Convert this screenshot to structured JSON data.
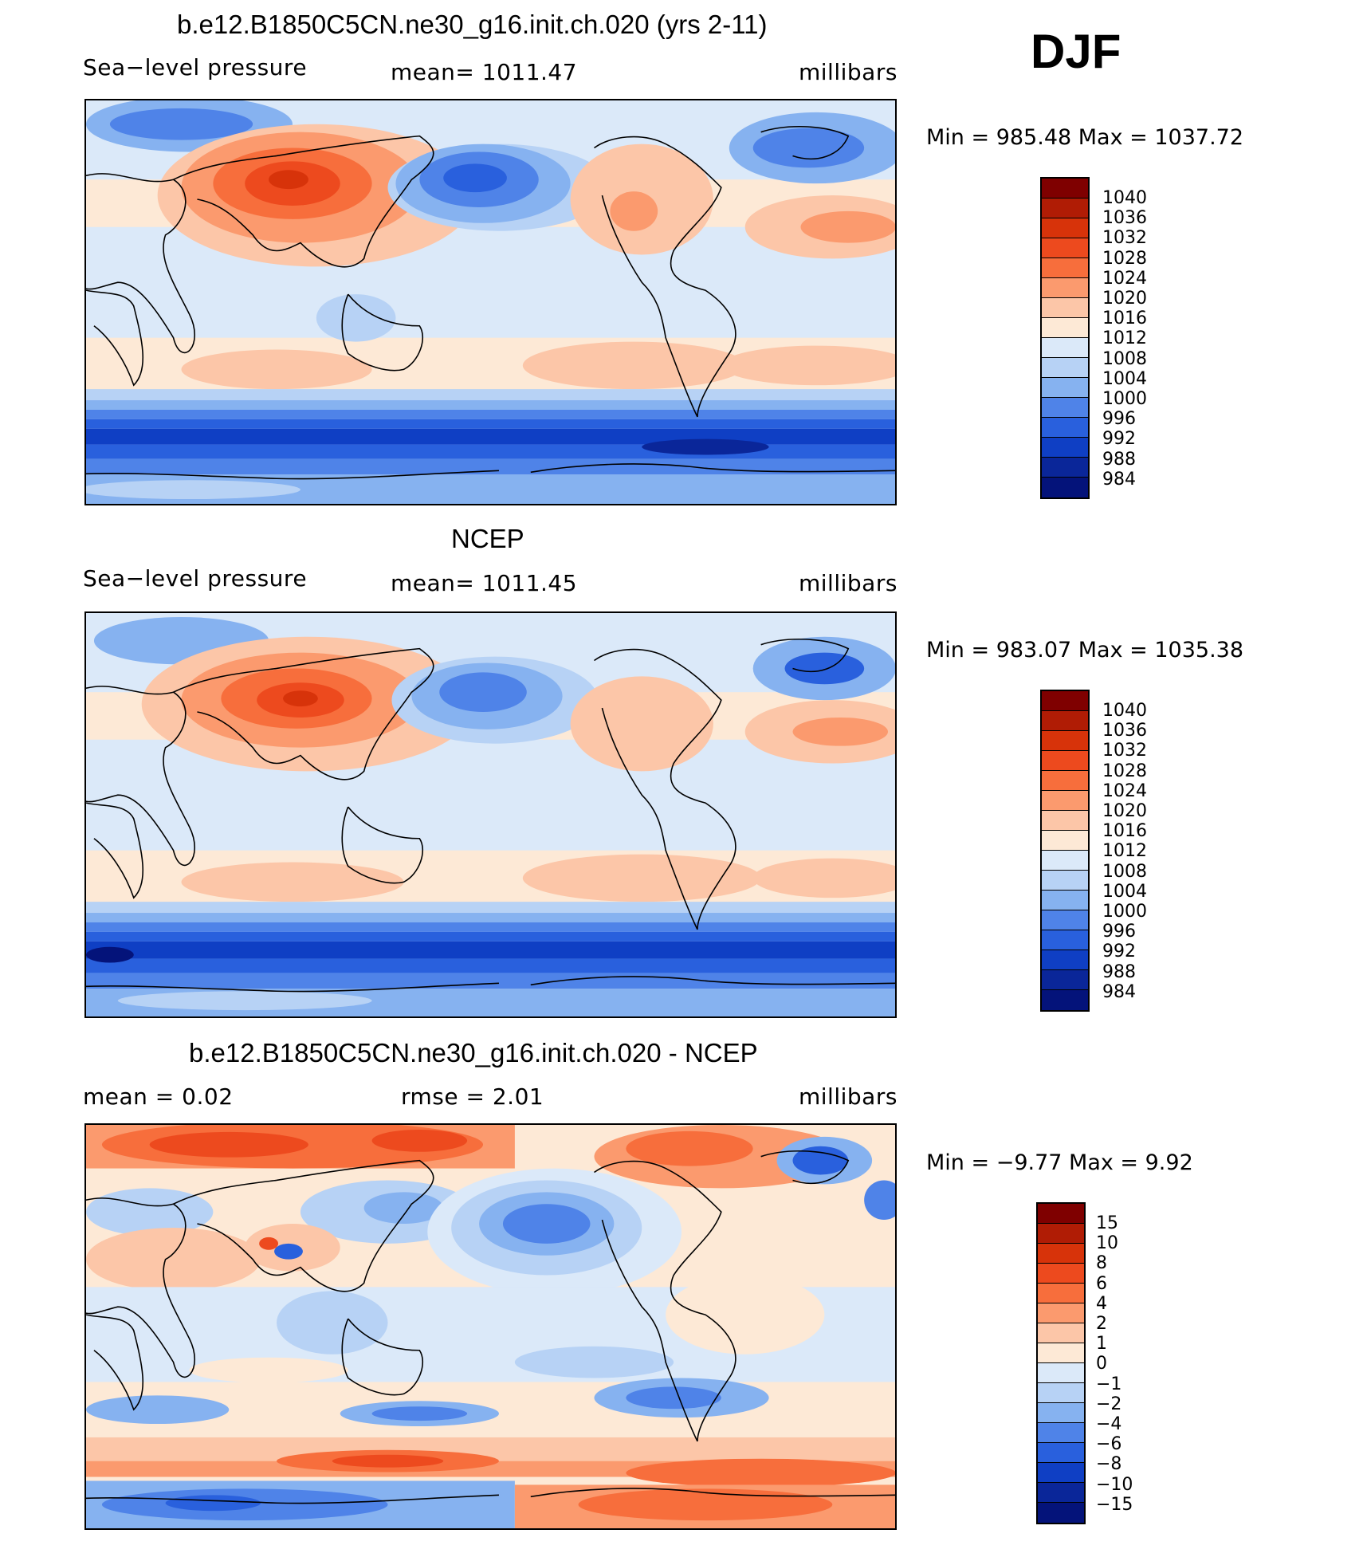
{
  "season": "DJF",
  "panels": [
    {
      "title": "b.e12.B1850C5CN.ne30_g16.init.ch.020 (yrs 2-11)",
      "left": "Sea−level pressure",
      "center": "mean=  1011.47",
      "right": "millibars",
      "minmax": "Min  =  985.48  Max  =  1037.72",
      "colorbar": [
        "1040",
        "1036",
        "1032",
        "1028",
        "1024",
        "1020",
        "1016",
        "1012",
        "1008",
        "1004",
        "1000",
        "996",
        "992",
        "988",
        "984"
      ]
    },
    {
      "title": "NCEP",
      "left": "Sea−level pressure",
      "center": "mean=  1011.45",
      "right": "millibars",
      "minmax": "Min  =  983.07  Max  =  1035.38",
      "colorbar": [
        "1040",
        "1036",
        "1032",
        "1028",
        "1024",
        "1020",
        "1016",
        "1012",
        "1008",
        "1004",
        "1000",
        "996",
        "992",
        "988",
        "984"
      ]
    },
    {
      "title": "b.e12.B1850C5CN.ne30_g16.init.ch.020 - NCEP",
      "left": "mean  =      0.02",
      "center": "rmse  =      2.01",
      "right": "millibars",
      "minmax": "Min  =    −9.77  Max  =      9.92",
      "colorbar": [
        "15",
        "10",
        "8",
        "6",
        "4",
        "2",
        "1",
        "0",
        "−1",
        "−2",
        "−4",
        "−6",
        "−8",
        "−10",
        "−15"
      ]
    }
  ],
  "colors": {
    "slp_scale": [
      "#7f0000",
      "#b01c05",
      "#d7330a",
      "#ed4a1e",
      "#f76e3c",
      "#fb9a6e",
      "#fcc6a8",
      "#fde9d6",
      "#dbe9f9",
      "#b7d2f5",
      "#86b2f0",
      "#4f83e8",
      "#2960dd",
      "#0f3fc4",
      "#0a2699",
      "#04137a"
    ],
    "diff_scale": [
      "#7f0000",
      "#b01c05",
      "#d7330a",
      "#ed4a1e",
      "#f76e3c",
      "#fb9a6e",
      "#fcc6a8",
      "#fde9d6",
      "#dbe9f9",
      "#b7d2f5",
      "#86b2f0",
      "#4f83e8",
      "#2960dd",
      "#0f3fc4",
      "#0a2699",
      "#04137a"
    ]
  }
}
